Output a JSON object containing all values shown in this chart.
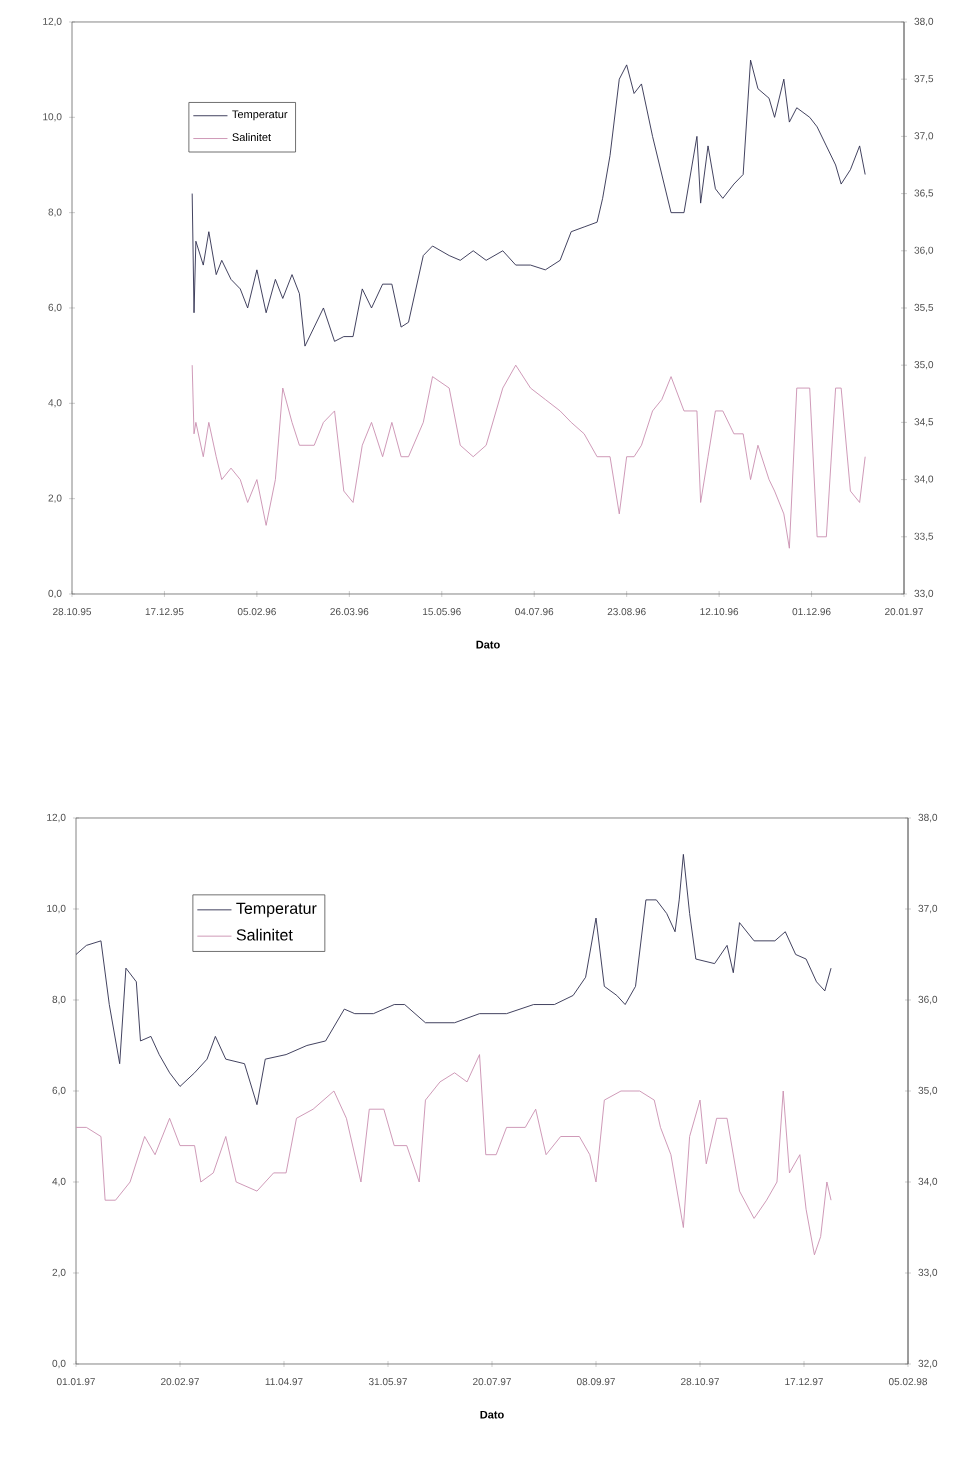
{
  "chart_data": [
    {
      "type": "line",
      "xlabel": "Dato",
      "legend": "top left",
      "xlim": [
        "1995-10-28",
        "1997-01-20"
      ],
      "xticks": [
        {
          "value": "1995-10-28",
          "label": "28.10.95"
        },
        {
          "value": "1995-12-17",
          "label": "17.12.95"
        },
        {
          "value": "1996-02-05",
          "label": "05.02.96"
        },
        {
          "value": "1996-03-26",
          "label": "26.03.96"
        },
        {
          "value": "1996-05-15",
          "label": "15.05.96"
        },
        {
          "value": "1996-07-04",
          "label": "04.07.96"
        },
        {
          "value": "1996-08-23",
          "label": "23.08.96"
        },
        {
          "value": "1996-10-12",
          "label": "12.10.96"
        },
        {
          "value": "1996-12-01",
          "label": "01.12.96"
        },
        {
          "value": "1997-01-20",
          "label": "20.01.97"
        }
      ],
      "ylim": [
        0,
        12
      ],
      "yticks": [
        {
          "value": 0,
          "label": "0,0"
        },
        {
          "value": 2,
          "label": "2,0"
        },
        {
          "value": 4,
          "label": "4,0"
        },
        {
          "value": 6,
          "label": "6,0"
        },
        {
          "value": 8,
          "label": "8,0"
        },
        {
          "value": 10,
          "label": "10,0"
        },
        {
          "value": 12,
          "label": "12,0"
        }
      ],
      "y2lim": [
        33,
        38
      ],
      "y2ticks": [
        {
          "value": 33,
          "label": "33,0"
        },
        {
          "value": 33.5,
          "label": "33,5"
        },
        {
          "value": 34,
          "label": "34,0"
        },
        {
          "value": 34.5,
          "label": "34,5"
        },
        {
          "value": 35,
          "label": "35,0"
        },
        {
          "value": 35.5,
          "label": "35,5"
        },
        {
          "value": 36,
          "label": "36,0"
        },
        {
          "value": 36.5,
          "label": "36,5"
        },
        {
          "value": 37,
          "label": "37,0"
        },
        {
          "value": 37.5,
          "label": "37,5"
        },
        {
          "value": 38,
          "label": "38,0"
        }
      ],
      "x": [
        "1996-01-01",
        "1996-01-02",
        "1996-01-03",
        "1996-01-07",
        "1996-01-10",
        "1996-01-14",
        "1996-01-17",
        "1996-01-22",
        "1996-01-27",
        "1996-01-31",
        "1996-02-05",
        "1996-02-10",
        "1996-02-15",
        "1996-02-19",
        "1996-02-24",
        "1996-02-28",
        "1996-03-02",
        "1996-03-07",
        "1996-03-12",
        "1996-03-18",
        "1996-03-23",
        "1996-03-28",
        "1996-04-02",
        "1996-04-07",
        "1996-04-13",
        "1996-04-18",
        "1996-04-23",
        "1996-04-27",
        "1996-05-05",
        "1996-05-10",
        "1996-05-19",
        "1996-05-25",
        "1996-06-01",
        "1996-06-08",
        "1996-06-17",
        "1996-06-24",
        "1996-07-02",
        "1996-07-10",
        "1996-07-18",
        "1996-07-24",
        "1996-07-31",
        "1996-08-07",
        "1996-08-10",
        "1996-08-14",
        "1996-08-19",
        "1996-08-23",
        "1996-08-27",
        "1996-08-31",
        "1996-09-06",
        "1996-09-11",
        "1996-09-16",
        "1996-09-23",
        "1996-09-30",
        "1996-10-02",
        "1996-10-06",
        "1996-10-10",
        "1996-10-14",
        "1996-10-20",
        "1996-10-25",
        "1996-10-29",
        "1996-11-02",
        "1996-11-08",
        "1996-11-11",
        "1996-11-16",
        "1996-11-19",
        "1996-11-23",
        "1996-11-30",
        "1996-12-04",
        "1996-12-09",
        "1996-12-14",
        "1996-12-17",
        "1996-12-22",
        "1996-12-27",
        "1996-12-30"
      ],
      "series": [
        {
          "name": "Temperatur",
          "color": "#2e2e4e",
          "values": [
            8.4,
            5.9,
            7.4,
            6.9,
            7.6,
            6.7,
            7.0,
            6.6,
            6.4,
            6.0,
            6.8,
            5.9,
            6.6,
            6.2,
            6.7,
            6.3,
            5.2,
            5.6,
            6.0,
            5.3,
            5.4,
            5.4,
            6.4,
            6.0,
            6.5,
            6.5,
            5.6,
            5.7,
            7.1,
            7.3,
            7.1,
            7.0,
            7.2,
            7.0,
            7.2,
            6.9,
            6.9,
            6.8,
            7.0,
            7.6,
            7.7,
            7.8,
            8.3,
            9.2,
            10.8,
            11.1,
            10.5,
            10.7,
            9.6,
            8.8,
            8.0,
            8.0,
            9.6,
            8.2,
            9.4,
            8.5,
            8.3,
            8.6,
            8.8,
            11.2,
            10.6,
            10.4,
            10.0,
            10.8,
            9.9,
            10.2,
            10.0,
            9.8,
            9.4,
            9.0,
            8.6,
            8.9,
            9.4,
            8.8
          ]
        },
        {
          "name": "Salinitet",
          "color": "#c98fb0",
          "axis": "y2",
          "values": [
            35.0,
            34.4,
            34.5,
            34.2,
            34.5,
            34.2,
            34.0,
            34.1,
            34.0,
            33.8,
            34.0,
            33.6,
            34.0,
            34.8,
            34.5,
            34.3,
            34.3,
            34.3,
            34.5,
            34.6,
            33.9,
            33.8,
            34.3,
            34.5,
            34.2,
            34.5,
            34.2,
            34.2,
            34.5,
            34.9,
            34.8,
            34.3,
            34.2,
            34.3,
            34.8,
            35.0,
            34.8,
            34.7,
            34.6,
            34.5,
            34.4,
            34.2,
            34.2,
            34.2,
            33.7,
            34.2,
            34.2,
            34.3,
            34.6,
            34.7,
            34.9,
            34.6,
            34.6,
            33.8,
            34.2,
            34.6,
            34.6,
            34.4,
            34.4,
            34.0,
            34.3,
            34.0,
            33.9,
            33.7,
            33.4,
            34.8,
            34.8,
            33.5,
            33.5,
            34.8,
            34.8,
            33.9,
            33.8,
            34.2
          ]
        }
      ]
    },
    {
      "type": "line",
      "xlabel": "Dato",
      "legend": "top left",
      "xlim": [
        "1997-01-01",
        "1998-02-05"
      ],
      "xticks": [
        {
          "value": "1997-01-01",
          "label": "01.01.97"
        },
        {
          "value": "1997-02-20",
          "label": "20.02.97"
        },
        {
          "value": "1997-04-11",
          "label": "11.04.97"
        },
        {
          "value": "1997-05-31",
          "label": "31.05.97"
        },
        {
          "value": "1997-07-20",
          "label": "20.07.97"
        },
        {
          "value": "1997-09-08",
          "label": "08.09.97"
        },
        {
          "value": "1997-10-28",
          "label": "28.10.97"
        },
        {
          "value": "1997-12-17",
          "label": "17.12.97"
        },
        {
          "value": "1998-02-05",
          "label": "05.02.98"
        }
      ],
      "ylim": [
        0,
        12
      ],
      "yticks": [
        {
          "value": 0,
          "label": "0,0"
        },
        {
          "value": 2,
          "label": "2,0"
        },
        {
          "value": 4,
          "label": "4,0"
        },
        {
          "value": 6,
          "label": "6,0"
        },
        {
          "value": 8,
          "label": "8,0"
        },
        {
          "value": 10,
          "label": "10,0"
        },
        {
          "value": 12,
          "label": "12,0"
        }
      ],
      "y2lim": [
        32,
        38
      ],
      "y2ticks": [
        {
          "value": 32,
          "label": "32,0"
        },
        {
          "value": 33,
          "label": "33,0"
        },
        {
          "value": 34,
          "label": "34,0"
        },
        {
          "value": 35,
          "label": "35,0"
        },
        {
          "value": 36,
          "label": "36,0"
        },
        {
          "value": 37,
          "label": "37,0"
        },
        {
          "value": 38,
          "label": "38,0"
        }
      ],
      "series": [
        {
          "name": "Temperatur",
          "color": "#2e2e4e",
          "x": [
            "1997-01-01",
            "1997-01-06",
            "1997-01-13",
            "1997-01-17",
            "1997-01-22",
            "1997-01-25",
            "1997-01-30",
            "1997-02-01",
            "1997-02-06",
            "1997-02-10",
            "1997-02-15",
            "1997-02-20",
            "1997-02-27",
            "1997-03-05",
            "1997-03-09",
            "1997-03-14",
            "1997-03-23",
            "1997-03-29",
            "1997-04-02",
            "1997-04-12",
            "1997-04-22",
            "1997-05-01",
            "1997-05-10",
            "1997-05-15",
            "1997-05-24",
            "1997-06-03",
            "1997-06-08",
            "1997-06-18",
            "1997-07-02",
            "1997-07-14",
            "1997-07-27",
            "1997-08-09",
            "1997-08-19",
            "1997-08-28",
            "1997-09-03",
            "1997-09-08",
            "1997-09-12",
            "1997-09-18",
            "1997-09-22",
            "1997-09-27",
            "1997-10-02",
            "1997-10-07",
            "1997-10-12",
            "1997-10-16",
            "1997-10-18",
            "1997-10-20",
            "1997-10-23",
            "1997-10-26",
            "1997-11-04",
            "1997-11-10",
            "1997-11-13",
            "1997-11-16",
            "1997-11-23",
            "1997-12-03",
            "1997-12-08",
            "1997-12-13",
            "1997-12-18",
            "1997-12-23",
            "1997-12-27",
            "1997-12-30"
          ],
          "values": [
            9.0,
            9.2,
            9.3,
            7.9,
            6.6,
            8.7,
            8.4,
            7.1,
            7.2,
            6.8,
            6.4,
            6.1,
            6.4,
            6.7,
            7.2,
            6.7,
            6.6,
            5.7,
            6.7,
            6.8,
            7.0,
            7.1,
            7.8,
            7.7,
            7.7,
            7.9,
            7.9,
            7.5,
            7.5,
            7.7,
            7.7,
            7.9,
            7.9,
            8.1,
            8.5,
            9.8,
            8.3,
            8.1,
            7.9,
            8.3,
            10.2,
            10.2,
            9.9,
            9.5,
            10.2,
            11.2,
            9.9,
            8.9,
            8.8,
            9.2,
            8.6,
            9.7,
            9.3,
            9.3,
            9.5,
            9.0,
            8.9,
            8.4,
            8.2,
            8.7
          ]
        },
        {
          "name": "Salinitet",
          "color": "#c98fb0",
          "axis": "y2",
          "x": [
            "1997-01-01",
            "1997-01-06",
            "1997-01-13",
            "1997-01-15",
            "1997-01-20",
            "1997-01-27",
            "1997-02-03",
            "1997-02-08",
            "1997-02-15",
            "1997-02-20",
            "1997-02-27",
            "1997-03-02",
            "1997-03-08",
            "1997-03-14",
            "1997-03-19",
            "1997-03-29",
            "1997-04-06",
            "1997-04-12",
            "1997-04-17",
            "1997-04-25",
            "1997-05-05",
            "1997-05-11",
            "1997-05-18",
            "1997-05-22",
            "1997-05-29",
            "1997-06-03",
            "1997-06-09",
            "1997-06-15",
            "1997-06-18",
            "1997-06-25",
            "1997-07-02",
            "1997-07-08",
            "1997-07-14",
            "1997-07-17",
            "1997-07-22",
            "1997-07-27",
            "1997-08-05",
            "1997-08-10",
            "1997-08-15",
            "1997-08-22",
            "1997-08-31",
            "1997-09-05",
            "1997-09-08",
            "1997-09-12",
            "1997-09-20",
            "1997-09-29",
            "1997-10-06",
            "1997-10-09",
            "1997-10-14",
            "1997-10-20",
            "1997-10-23",
            "1997-10-28",
            "1997-10-31",
            "1997-11-05",
            "1997-11-10",
            "1997-11-16",
            "1997-11-23",
            "1997-11-29",
            "1997-12-04",
            "1997-12-07",
            "1997-12-10",
            "1997-12-15",
            "1997-12-18",
            "1997-12-22",
            "1997-12-25",
            "1997-12-28",
            "1997-12-30"
          ],
          "values": [
            34.6,
            34.6,
            34.5,
            33.8,
            33.8,
            34.0,
            34.5,
            34.3,
            34.7,
            34.4,
            34.4,
            34.0,
            34.1,
            34.5,
            34.0,
            33.9,
            34.1,
            34.1,
            34.7,
            34.8,
            35.0,
            34.7,
            34.0,
            34.8,
            34.8,
            34.4,
            34.4,
            34.0,
            34.9,
            35.1,
            35.2,
            35.1,
            35.4,
            34.3,
            34.3,
            34.6,
            34.6,
            34.8,
            34.3,
            34.5,
            34.5,
            34.3,
            34.0,
            34.9,
            35.0,
            35.0,
            34.9,
            34.6,
            34.3,
            33.5,
            34.5,
            34.9,
            34.2,
            34.7,
            34.7,
            33.9,
            33.6,
            33.8,
            34.0,
            35.0,
            34.1,
            34.3,
            33.7,
            33.2,
            33.4,
            34.0,
            33.8
          ]
        }
      ]
    }
  ]
}
